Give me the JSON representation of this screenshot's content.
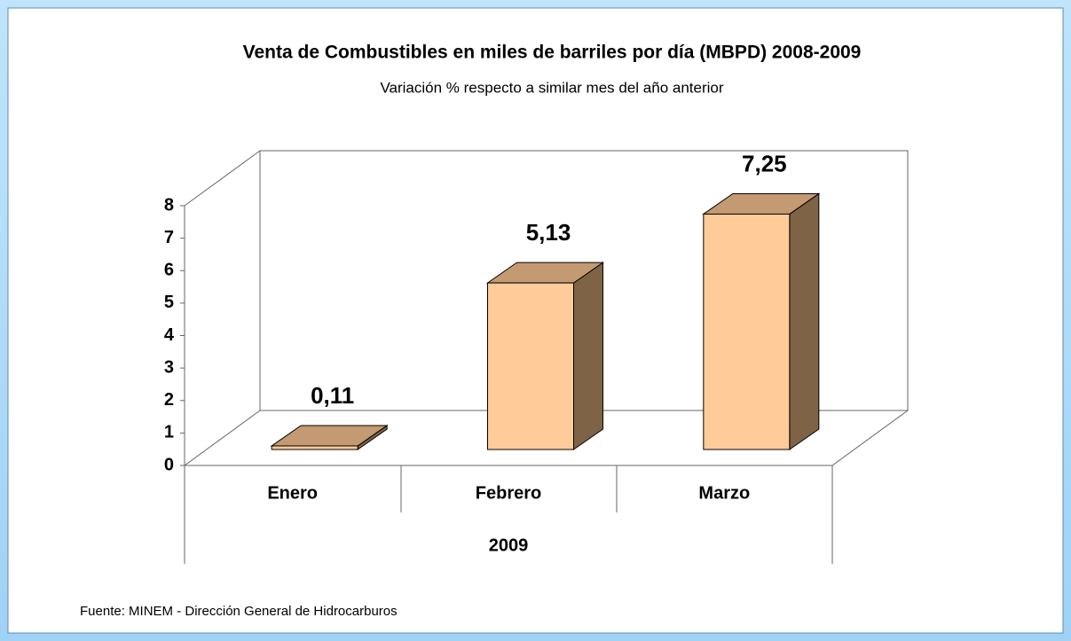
{
  "chart_data": {
    "type": "bar3d",
    "title": "Venta de Combustibles en miles de barriles por día (MBPD) 2008-2009",
    "subtitle": "Variación %  respecto a similar mes del año anterior",
    "categories": [
      "Enero",
      "Febrero",
      "Marzo"
    ],
    "group_label": "2009",
    "values": [
      0.11,
      5.13,
      7.25
    ],
    "value_labels": [
      "0,11",
      "5,13",
      "7,25"
    ],
    "color": "#ffcc99",
    "ylim": [
      0,
      8
    ],
    "yticks": [
      0,
      1,
      2,
      3,
      4,
      5,
      6,
      7,
      8
    ],
    "source": "Fuente: MINEM - Dirección General de Hidrocarburos"
  }
}
